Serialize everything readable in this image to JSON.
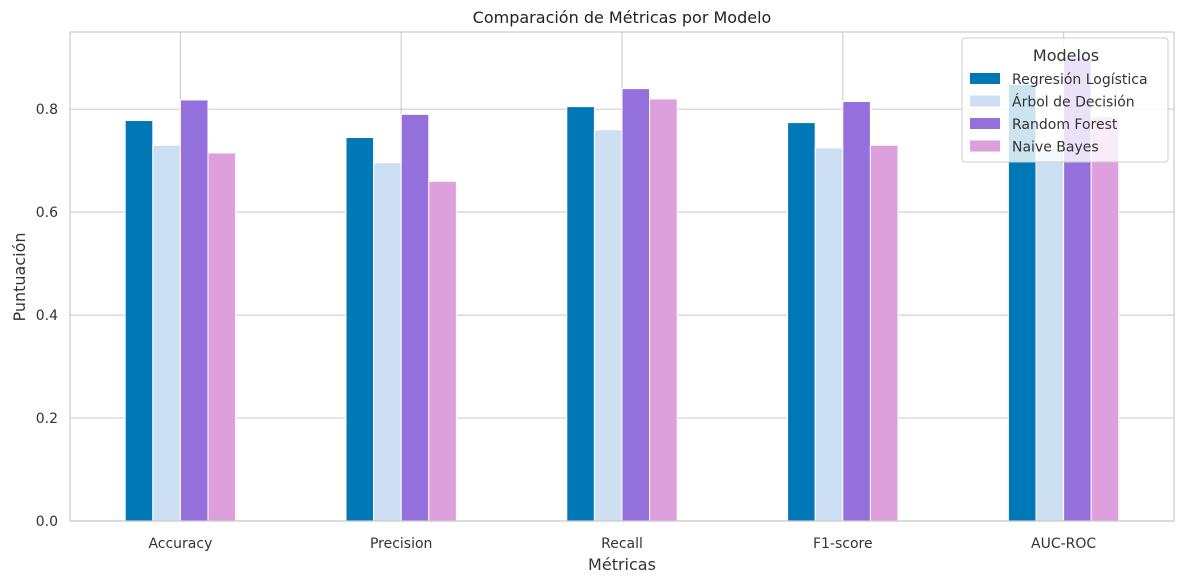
{
  "chart_data": {
    "type": "bar",
    "title": "Comparación de Métricas por Modelo",
    "xlabel": "Métricas",
    "ylabel": "Puntuación",
    "categories": [
      "Accuracy",
      "Precision",
      "Recall",
      "F1-score",
      "AUC-ROC"
    ],
    "ylim": [
      0,
      0.95
    ],
    "yticks": [
      0.0,
      0.2,
      0.4,
      0.6,
      0.8
    ],
    "ytick_labels": [
      "0.0",
      "0.2",
      "0.4",
      "0.6",
      "0.8"
    ],
    "grid": true,
    "legend": {
      "title": "Modelos",
      "position": "top-right"
    },
    "series": [
      {
        "name": "Regresión Logística",
        "color": "#0077b6",
        "values": [
          0.778,
          0.745,
          0.805,
          0.774,
          0.848
        ]
      },
      {
        "name": "Árbol de Decisión",
        "color": "#cddff2",
        "values": [
          0.73,
          0.696,
          0.76,
          0.725,
          0.725
        ]
      },
      {
        "name": "Random Forest",
        "color": "#9370db",
        "values": [
          0.818,
          0.79,
          0.84,
          0.815,
          0.9
        ]
      },
      {
        "name": "Naive Bayes",
        "color": "#dda0dd",
        "values": [
          0.715,
          0.66,
          0.82,
          0.73,
          0.785
        ]
      }
    ]
  }
}
